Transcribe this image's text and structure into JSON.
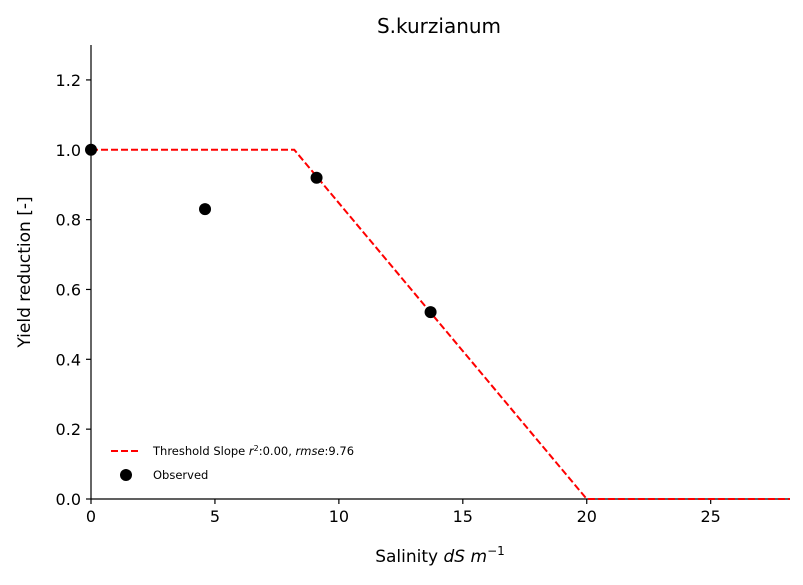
{
  "chart_data": {
    "type": "scatter",
    "title": "S.kurzianum",
    "xlabel_prefix": "Salinity ",
    "xlabel_italic": "dS m",
    "xlabel_sup": "−1",
    "ylabel": "Yield reduction [-]",
    "xlim": [
      0,
      28.2
    ],
    "ylim": [
      0,
      1.3
    ],
    "xticks": [
      0,
      5,
      10,
      15,
      20,
      25
    ],
    "yticks": [
      0.0,
      0.2,
      0.4,
      0.6,
      0.8,
      1.0,
      1.2
    ],
    "grid": false,
    "legend_position": "lower-left",
    "series": [
      {
        "name": "Threshold Slope",
        "kind": "line",
        "style": "dashed",
        "color": "#ff0000",
        "x": [
          0,
          8.2,
          20.0,
          28.2
        ],
        "y": [
          1.0,
          1.0,
          0.0,
          0.0
        ],
        "legend_label": {
          "prefix": "Threshold Slope ",
          "r2_italic": "r",
          "r2_sup": "2",
          "r2_value": ":0.00, ",
          "rmse_italic": "rmse",
          "rmse_value": ":9.76"
        }
      },
      {
        "name": "Observed",
        "kind": "scatter",
        "color": "#000000",
        "x": [
          0.0,
          4.6,
          9.1,
          13.7
        ],
        "y": [
          1.0,
          0.83,
          0.92,
          0.535
        ]
      }
    ]
  }
}
